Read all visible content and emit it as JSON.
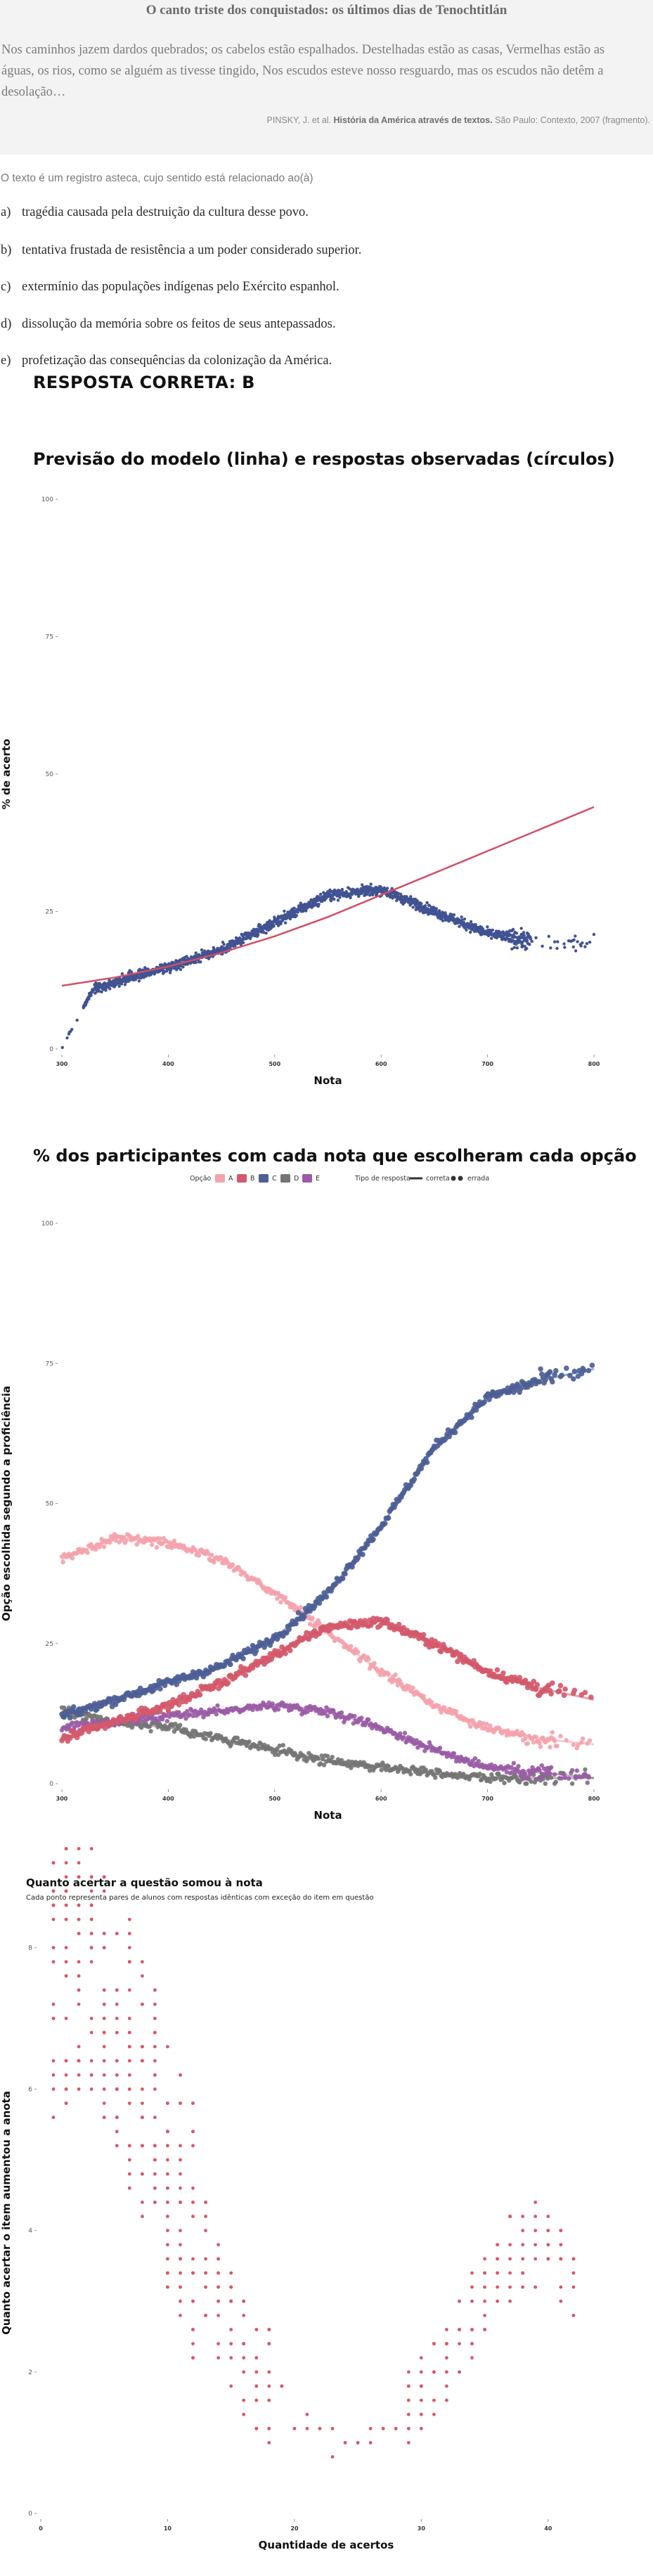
{
  "question": {
    "text_title": "O canto triste dos conquistados: os últimos dias de Tenochtitlán",
    "text_body": "Nos caminhos jazem dardos quebrados; os cabelos estão espalhados. Destelhadas estão as casas, Vermelhas estão as águas, os rios, como se alguém as tivesse tingido, Nos escudos esteve nosso resguardo, mas os escudos não detêm a desolação…",
    "source_authors": "PINSKY, J. et al.",
    "source_book": "História da América através de textos.",
    "source_rest": "São Paulo: Contexto, 2007 (fragmento).",
    "prompt": "O texto é um registro asteca, cujo sentido está relacionado ao(à)",
    "options": [
      {
        "letter": "a)",
        "text": "tragédia causada pela destruição da cultura desse povo."
      },
      {
        "letter": "b)",
        "text": "tentativa frustada de resistência a um poder considerado superior."
      },
      {
        "letter": "c)",
        "text": "extermínio das populações indígenas pelo Exército espanhol."
      },
      {
        "letter": "d)",
        "text": "dissolução da memória sobre os feitos de seus antepassados."
      },
      {
        "letter": "e)",
        "text": "profetização das consequências da colonização da América."
      }
    ],
    "answer_label": "RESPOSTA CORRETA: B"
  },
  "colors": {
    "A": "#f4a3ad",
    "B": "#d4596b",
    "C": "#4d5f96",
    "D": "#757575",
    "E": "#9a5ca6",
    "points": "#415392",
    "curve": "#d04f66",
    "pairs": "#d4596b"
  },
  "chart_data": [
    {
      "type": "scatter",
      "title": "Previsão do modelo (linha) e respostas observadas (círculos)",
      "xlabel": "Nota",
      "ylabel": "% de acerto",
      "xlim": [
        300,
        800
      ],
      "ylim": [
        0,
        100
      ],
      "xticks": [
        "300",
        "400",
        "500",
        "600",
        "700",
        "800"
      ],
      "yticks": [
        "0",
        "25",
        "50",
        "75",
        "100"
      ],
      "observed_pattern": [
        [
          300,
          0
        ],
        [
          310,
          4
        ],
        [
          330,
          11
        ],
        [
          400,
          15
        ],
        [
          450,
          18
        ],
        [
          500,
          23
        ],
        [
          550,
          28
        ],
        [
          600,
          29
        ],
        [
          650,
          25
        ],
        [
          700,
          21
        ],
        [
          760,
          19
        ],
        [
          800,
          19
        ]
      ],
      "model_curve": [
        [
          300,
          11.5
        ],
        [
          350,
          13
        ],
        [
          400,
          15
        ],
        [
          450,
          17.5
        ],
        [
          500,
          20.5
        ],
        [
          550,
          24
        ],
        [
          600,
          28
        ],
        [
          650,
          32
        ],
        [
          700,
          36
        ],
        [
          750,
          40
        ],
        [
          800,
          44
        ]
      ]
    },
    {
      "type": "scatter",
      "title": "% dos participantes com cada nota que escolheram cada opção",
      "xlabel": "Nota",
      "ylabel": "Opção escolhida segundo a proficiência",
      "xlim": [
        300,
        800
      ],
      "ylim": [
        0,
        100
      ],
      "xticks": [
        "300",
        "400",
        "500",
        "600",
        "700",
        "800"
      ],
      "yticks": [
        "0",
        "25",
        "50",
        "75",
        "100"
      ],
      "legend": {
        "option_title": "Opção",
        "options": [
          "A",
          "B",
          "C",
          "D",
          "E"
        ],
        "type_title": "Tipo de resposta",
        "types": [
          "correta",
          "errada"
        ],
        "placement": "top"
      },
      "series": [
        {
          "name": "A",
          "points": [
            [
              300,
              40
            ],
            [
              350,
              44
            ],
            [
              400,
              43
            ],
            [
              450,
              40
            ],
            [
              500,
              34
            ],
            [
              550,
              27
            ],
            [
              600,
              20
            ],
            [
              650,
              14
            ],
            [
              700,
              10
            ],
            [
              750,
              8
            ],
            [
              800,
              7
            ]
          ]
        },
        {
          "name": "B",
          "points": [
            [
              300,
              8
            ],
            [
              350,
              11
            ],
            [
              400,
              14
            ],
            [
              450,
              18
            ],
            [
              500,
              23
            ],
            [
              550,
              28
            ],
            [
              600,
              29
            ],
            [
              650,
              25
            ],
            [
              700,
              20
            ],
            [
              750,
              17
            ],
            [
              800,
              15
            ]
          ]
        },
        {
          "name": "C",
          "points": [
            [
              300,
              12
            ],
            [
              350,
              15
            ],
            [
              400,
              18
            ],
            [
              450,
              21
            ],
            [
              500,
              26
            ],
            [
              550,
              34
            ],
            [
              600,
              46
            ],
            [
              650,
              60
            ],
            [
              700,
              69
            ],
            [
              750,
              72
            ],
            [
              800,
              74
            ]
          ]
        },
        {
          "name": "D",
          "points": [
            [
              300,
              13
            ],
            [
              350,
              11
            ],
            [
              400,
              10
            ],
            [
              450,
              8
            ],
            [
              500,
              6
            ],
            [
              550,
              4
            ],
            [
              600,
              3
            ],
            [
              650,
              2
            ],
            [
              700,
              1
            ],
            [
              750,
              1
            ],
            [
              800,
              1
            ]
          ]
        },
        {
          "name": "E",
          "points": [
            [
              300,
              10
            ],
            [
              350,
              11
            ],
            [
              400,
              12
            ],
            [
              450,
              13
            ],
            [
              500,
              14
            ],
            [
              550,
              13
            ],
            [
              600,
              10
            ],
            [
              650,
              6
            ],
            [
              700,
              3
            ],
            [
              750,
              2
            ],
            [
              800,
              1
            ]
          ]
        }
      ]
    },
    {
      "type": "scatter",
      "title": "Quanto acertar a questão somou à nota",
      "subtitle": "Cada ponto representa pares de alunos com respostas idênticas com exceção do item em questão",
      "xlabel": "Quantidade de acertos",
      "ylabel": "Quanto acertar o item aumentou a anota",
      "xlim": [
        0,
        45
      ],
      "ylim": [
        0,
        8.5
      ],
      "xticks": [
        "0",
        "10",
        "20",
        "30",
        "40"
      ],
      "yticks": [
        "0",
        "2",
        "4",
        "6",
        "8"
      ],
      "pattern": [
        [
          1,
          7.5
        ],
        [
          4,
          7.7
        ],
        [
          6,
          7.0
        ],
        [
          8,
          6.0
        ],
        [
          10,
          5.0
        ],
        [
          12,
          4.0
        ],
        [
          14,
          3.0
        ],
        [
          16,
          2.3
        ],
        [
          18,
          1.8
        ],
        [
          20,
          1.3
        ],
        [
          22,
          1.0
        ],
        [
          24,
          0.9
        ],
        [
          26,
          1.0
        ],
        [
          28,
          1.3
        ],
        [
          30,
          1.7
        ],
        [
          32,
          2.2
        ],
        [
          34,
          2.8
        ],
        [
          36,
          3.4
        ],
        [
          38,
          3.8
        ],
        [
          40,
          3.7
        ],
        [
          42,
          3.2
        ]
      ]
    }
  ]
}
